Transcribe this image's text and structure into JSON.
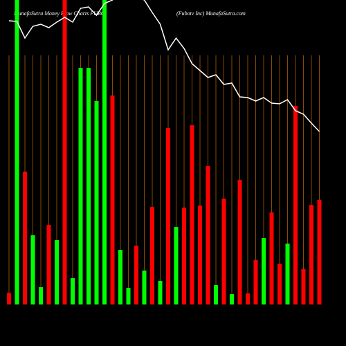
{
  "chart_data": {
    "type": "bar_line",
    "title": "MunafaSutra  Money Flow  Charts FUBO",
    "subtitle": "(Fubotv   Inc) MunafaSutra.com",
    "ylim": [
      0,
      440
    ],
    "values": [
      17,
      470,
      192,
      100,
      25,
      115,
      93,
      470,
      38,
      342,
      342,
      294,
      470,
      302,
      79,
      24,
      85,
      49,
      141,
      34,
      255,
      112,
      140,
      259,
      143,
      200,
      28,
      153,
      15,
      180,
      16,
      64,
      96,
      133,
      59,
      88,
      287,
      51,
      144,
      151
    ],
    "bar_colors": [
      "#ff0000",
      "#00ff00",
      "#ff0000",
      "#00ff00",
      "#00ff00",
      "#ff0000",
      "#00ff00",
      "#ff0000",
      "#00ff00",
      "#00ff00",
      "#00ff00",
      "#00ff00",
      "#00ff00",
      "#ff0000",
      "#00ff00",
      "#00ff00",
      "#ff0000",
      "#00ff00",
      "#ff0000",
      "#00ff00",
      "#ff0000",
      "#00ff00",
      "#ff0000",
      "#ff0000",
      "#ff0000",
      "#ff0000",
      "#00ff00",
      "#ff0000",
      "#00ff00",
      "#ff0000",
      "#ff0000",
      "#ff0000",
      "#00ff00",
      "#ff0000",
      "#ff0000",
      "#00ff00",
      "#ff0000",
      "#ff0000",
      "#ff0000",
      "#ff0000"
    ],
    "line_values": [
      410,
      409,
      385,
      402,
      405,
      400,
      408,
      415,
      408,
      428,
      430,
      418,
      435,
      440,
      450,
      450,
      445,
      440,
      422,
      405,
      368,
      385,
      370,
      348,
      338,
      328,
      332,
      318,
      320,
      300,
      299,
      294,
      299,
      291,
      290,
      296,
      280,
      275,
      262,
      250
    ],
    "line_color": "#ffffff",
    "guide_color": "#8b4a00"
  }
}
